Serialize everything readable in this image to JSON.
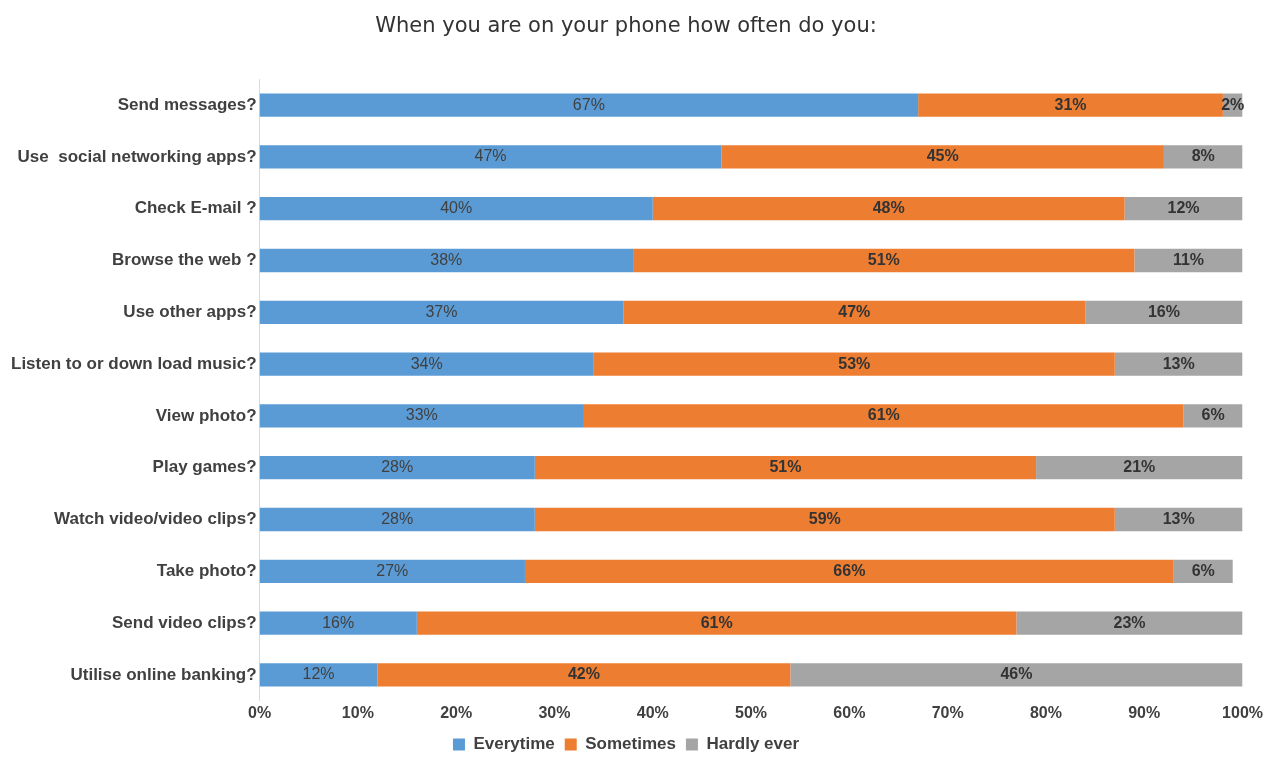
{
  "chart_data": {
    "type": "bar",
    "orientation": "horizontal",
    "stacked": true,
    "title": "When you are on your phone how often do you:",
    "categories": [
      "Send messages?",
      "Use  social networking apps?",
      "Check E-mail ?",
      "Browse the web ?",
      "Use other apps?",
      "Listen to or down load music?",
      "View photo?",
      "Play games?",
      "Watch video/video clips?",
      "Take photo?",
      "Send video clips?",
      "Utilise online banking?"
    ],
    "series": [
      {
        "name": "Everytime",
        "color": "#5b9bd5",
        "values": [
          67,
          47,
          40,
          38,
          37,
          34,
          33,
          28,
          28,
          27,
          16,
          12
        ],
        "value_labels": [
          "67%",
          "47%",
          "40%",
          "38%",
          "37%",
          "34%",
          "33%",
          "28%",
          "28%",
          "27%",
          "16%",
          "12%"
        ]
      },
      {
        "name": "Sometimes",
        "color": "#ed7d31",
        "values": [
          31,
          45,
          48,
          51,
          47,
          53,
          61,
          51,
          59,
          66,
          61,
          42
        ],
        "value_labels": [
          "31%",
          "45%",
          "48%",
          "51%",
          "47%",
          "53%",
          "61%",
          "51%",
          "59%",
          "66%",
          "61%",
          "42%"
        ]
      },
      {
        "name": "Hardly ever",
        "color": "#a5a5a5",
        "values": [
          2,
          8,
          12,
          11,
          16,
          13,
          6,
          21,
          13,
          6,
          23,
          46
        ],
        "value_labels": [
          "2%",
          "8%",
          "12%",
          "11%",
          "16%",
          "13%",
          "6%",
          "21%",
          "13%",
          "6%",
          "23%",
          "46%"
        ]
      }
    ],
    "xlim": [
      0,
      100
    ],
    "xticks": [
      {
        "value": 0,
        "label": "0%"
      },
      {
        "value": 10,
        "label": "10%"
      },
      {
        "value": 20,
        "label": "20%"
      },
      {
        "value": 30,
        "label": "30%"
      },
      {
        "value": 40,
        "label": "40%"
      },
      {
        "value": 50,
        "label": "50%"
      },
      {
        "value": 60,
        "label": "60%"
      },
      {
        "value": 70,
        "label": "70%"
      },
      {
        "value": 80,
        "label": "80%"
      },
      {
        "value": 90,
        "label": "90%"
      },
      {
        "value": 100,
        "label": "100%"
      }
    ],
    "grid": false,
    "legend": "bottom"
  }
}
